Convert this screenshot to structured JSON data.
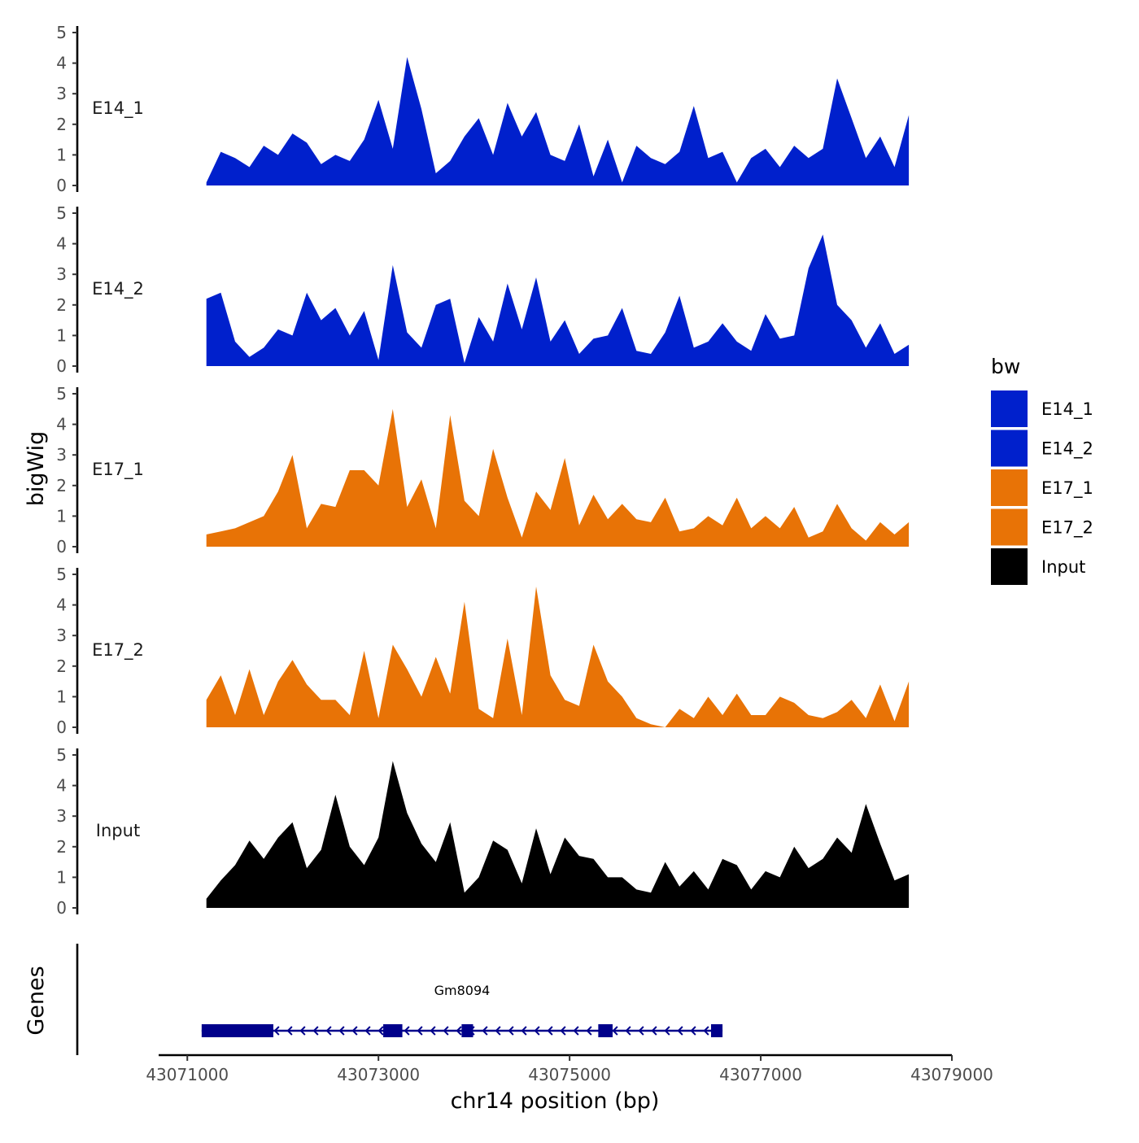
{
  "chart_data": {
    "type": "area",
    "title": "",
    "xlabel": "chr14 position (bp)",
    "ylabel": "bigWig",
    "gene_track_label": "Genes",
    "xlim": [
      43070700,
      43079000
    ],
    "x_ticks": [
      43071000,
      43073000,
      43075000,
      43077000,
      43079000
    ],
    "x_tick_labels": [
      "43071000",
      "43073000",
      "43075000",
      "43077000",
      "43079000"
    ],
    "ylim": [
      0,
      5
    ],
    "y_ticks": [
      0,
      1,
      2,
      3,
      4,
      5
    ],
    "y_tick_labels": [
      "0",
      "1",
      "2",
      "3",
      "4",
      "5"
    ],
    "legend": {
      "title": "bw",
      "position": "right",
      "items": [
        {
          "label": "E14_1",
          "color": "#0020CC"
        },
        {
          "label": "E14_2",
          "color": "#0020CC"
        },
        {
          "label": "E17_1",
          "color": "#E87306"
        },
        {
          "label": "E17_2",
          "color": "#E87306"
        },
        {
          "label": "Input",
          "color": "#000000"
        }
      ]
    },
    "x": [
      43071200,
      43071350,
      43071500,
      43071650,
      43071800,
      43071950,
      43072100,
      43072250,
      43072400,
      43072550,
      43072700,
      43072850,
      43073000,
      43073150,
      43073300,
      43073450,
      43073600,
      43073750,
      43073900,
      43074050,
      43074200,
      43074350,
      43074500,
      43074650,
      43074800,
      43074950,
      43075100,
      43075250,
      43075400,
      43075550,
      43075700,
      43075850,
      43076000,
      43076150,
      43076300,
      43076450,
      43076600,
      43076750,
      43076900,
      43077050,
      43077200,
      43077350,
      43077500,
      43077650,
      43077800,
      43077950,
      43078100,
      43078250,
      43078400,
      43078550
    ],
    "series": [
      {
        "name": "E14_1",
        "color": "#0020CC",
        "values": [
          0.1,
          1.1,
          0.9,
          0.6,
          1.3,
          1.0,
          1.7,
          1.4,
          0.7,
          1.0,
          0.8,
          1.5,
          2.8,
          1.2,
          4.2,
          2.5,
          0.4,
          0.8,
          1.6,
          2.2,
          1.0,
          2.7,
          1.6,
          2.4,
          1.0,
          0.8,
          2.0,
          0.3,
          1.5,
          0.1,
          1.3,
          0.9,
          0.7,
          1.1,
          2.6,
          0.9,
          1.1,
          0.1,
          0.9,
          1.2,
          0.6,
          1.3,
          0.9,
          1.2,
          3.5,
          2.2,
          0.9,
          1.6,
          0.6,
          2.3
        ]
      },
      {
        "name": "E14_2",
        "color": "#0020CC",
        "values": [
          2.2,
          2.4,
          0.8,
          0.3,
          0.6,
          1.2,
          1.0,
          2.4,
          1.5,
          1.9,
          1.0,
          1.8,
          0.2,
          3.3,
          1.1,
          0.6,
          2.0,
          2.2,
          0.1,
          1.6,
          0.8,
          2.7,
          1.2,
          2.9,
          0.8,
          1.5,
          0.4,
          0.9,
          1.0,
          1.9,
          0.5,
          0.4,
          1.1,
          2.3,
          0.6,
          0.8,
          1.4,
          0.8,
          0.5,
          1.7,
          0.9,
          1.0,
          3.2,
          4.3,
          2.0,
          1.5,
          0.6,
          1.4,
          0.4,
          0.7
        ]
      },
      {
        "name": "E17_1",
        "color": "#E87306",
        "values": [
          0.4,
          0.5,
          0.6,
          0.8,
          1.0,
          1.8,
          3.0,
          0.6,
          1.4,
          1.3,
          2.5,
          2.5,
          2.0,
          4.5,
          1.3,
          2.2,
          0.6,
          4.3,
          1.5,
          1.0,
          3.2,
          1.6,
          0.3,
          1.8,
          1.2,
          2.9,
          0.7,
          1.7,
          0.9,
          1.4,
          0.9,
          0.8,
          1.6,
          0.5,
          0.6,
          1.0,
          0.7,
          1.6,
          0.6,
          1.0,
          0.6,
          1.3,
          0.3,
          0.5,
          1.4,
          0.6,
          0.2,
          0.8,
          0.4,
          0.8
        ]
      },
      {
        "name": "E17_2",
        "color": "#E87306",
        "values": [
          0.9,
          1.7,
          0.4,
          1.9,
          0.4,
          1.5,
          2.2,
          1.4,
          0.9,
          0.9,
          0.4,
          2.5,
          0.3,
          2.7,
          1.9,
          1.0,
          2.3,
          1.1,
          4.1,
          0.6,
          0.3,
          2.9,
          0.4,
          4.6,
          1.7,
          0.9,
          0.7,
          2.7,
          1.5,
          1.0,
          0.3,
          0.1,
          0.0,
          0.6,
          0.3,
          1.0,
          0.4,
          1.1,
          0.4,
          0.4,
          1.0,
          0.8,
          0.4,
          0.3,
          0.5,
          0.9,
          0.3,
          1.4,
          0.2,
          1.5
        ]
      },
      {
        "name": "Input",
        "color": "#000000",
        "values": [
          0.3,
          0.9,
          1.4,
          2.2,
          1.6,
          2.3,
          2.8,
          1.3,
          1.9,
          3.7,
          2.0,
          1.4,
          2.3,
          4.8,
          3.1,
          2.1,
          1.5,
          2.8,
          0.5,
          1.0,
          2.2,
          1.9,
          0.8,
          2.6,
          1.1,
          2.3,
          1.7,
          1.6,
          1.0,
          1.0,
          0.6,
          0.5,
          1.5,
          0.7,
          1.2,
          0.6,
          1.6,
          1.4,
          0.6,
          1.2,
          1.0,
          2.0,
          1.3,
          1.6,
          2.3,
          1.8,
          3.4,
          2.1,
          0.9,
          1.1
        ]
      }
    ],
    "gene": {
      "name": "Gm8094",
      "strand": "-",
      "color": "#00008B",
      "start": 43071150,
      "end": 43076600,
      "exons": [
        [
          43071150,
          43071900
        ],
        [
          43073050,
          43073250
        ],
        [
          43073870,
          43073990
        ],
        [
          43075300,
          43075450
        ],
        [
          43076480,
          43076600
        ]
      ]
    }
  }
}
